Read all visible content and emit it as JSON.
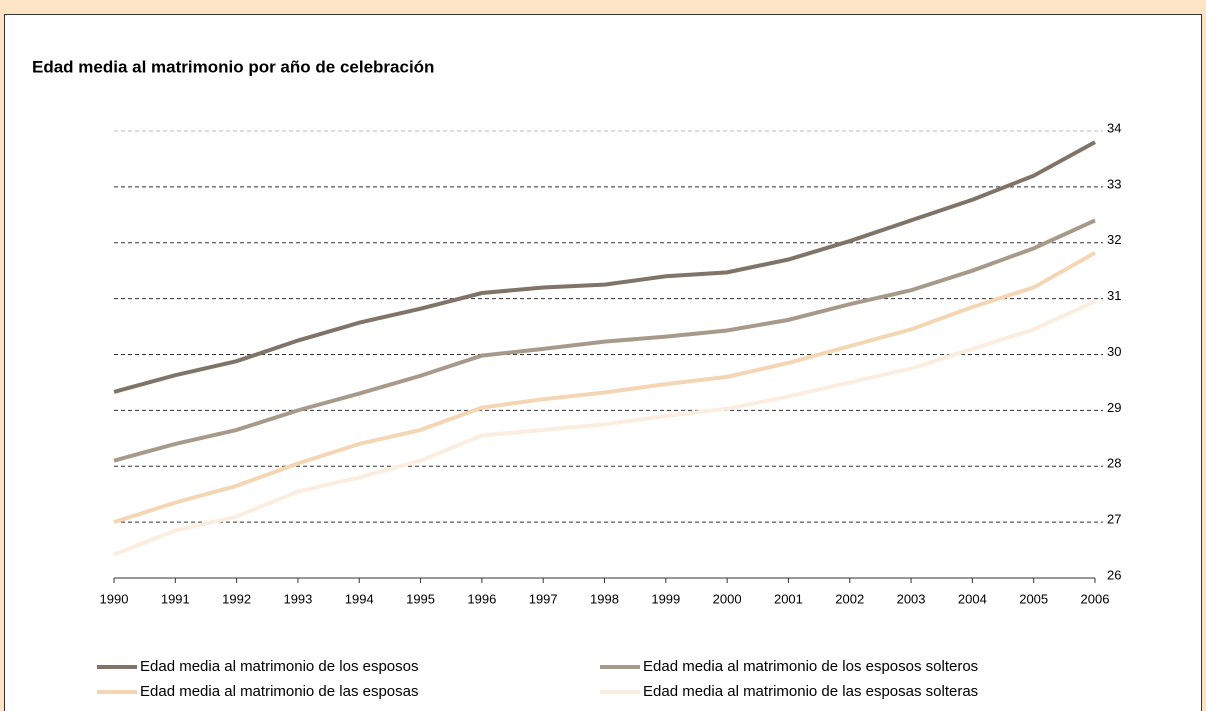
{
  "chart_data": {
    "type": "line",
    "title": "Edad media al matrimonio por año de celebración",
    "x": [
      1990,
      1991,
      1992,
      1993,
      1994,
      1995,
      1996,
      1997,
      1998,
      1999,
      2000,
      2001,
      2002,
      2003,
      2004,
      2005,
      2006
    ],
    "xlim": [
      1990,
      2006
    ],
    "xticks": [
      1990,
      1991,
      1992,
      1993,
      1994,
      1995,
      1996,
      1997,
      1998,
      1999,
      2000,
      2001,
      2002,
      2003,
      2004,
      2005,
      2006
    ],
    "ylim": [
      26,
      34
    ],
    "yticks": [
      26,
      27,
      28,
      29,
      30,
      31,
      32,
      33,
      34
    ],
    "grid": true,
    "series": [
      {
        "name": "Edad media al matrimonio de los esposos",
        "color": "#7f7467",
        "values": [
          29.33,
          29.63,
          29.88,
          30.25,
          30.57,
          30.82,
          31.1,
          31.2,
          31.25,
          31.4,
          31.47,
          31.7,
          32.03,
          32.4,
          32.77,
          33.2,
          33.8
        ]
      },
      {
        "name": "Edad media al matrimonio de los esposos solteros",
        "color": "#a89a8a",
        "values": [
          28.1,
          28.4,
          28.65,
          29.0,
          29.3,
          29.62,
          29.98,
          30.1,
          30.23,
          30.32,
          30.43,
          30.62,
          30.9,
          31.15,
          31.5,
          31.9,
          32.4
        ]
      },
      {
        "name": "Edad media al matrimonio de las esposas",
        "color": "#f5d6b4",
        "values": [
          27.0,
          27.35,
          27.65,
          28.05,
          28.4,
          28.65,
          29.05,
          29.2,
          29.32,
          29.47,
          29.6,
          29.85,
          30.15,
          30.45,
          30.85,
          31.2,
          31.82
        ]
      },
      {
        "name": "Edad media al matrimonio de las esposas solteras",
        "color": "#fbeee0",
        "values": [
          26.42,
          26.85,
          27.1,
          27.55,
          27.8,
          28.1,
          28.55,
          28.65,
          28.75,
          28.9,
          29.03,
          29.25,
          29.5,
          29.75,
          30.1,
          30.45,
          30.95
        ]
      }
    ]
  }
}
